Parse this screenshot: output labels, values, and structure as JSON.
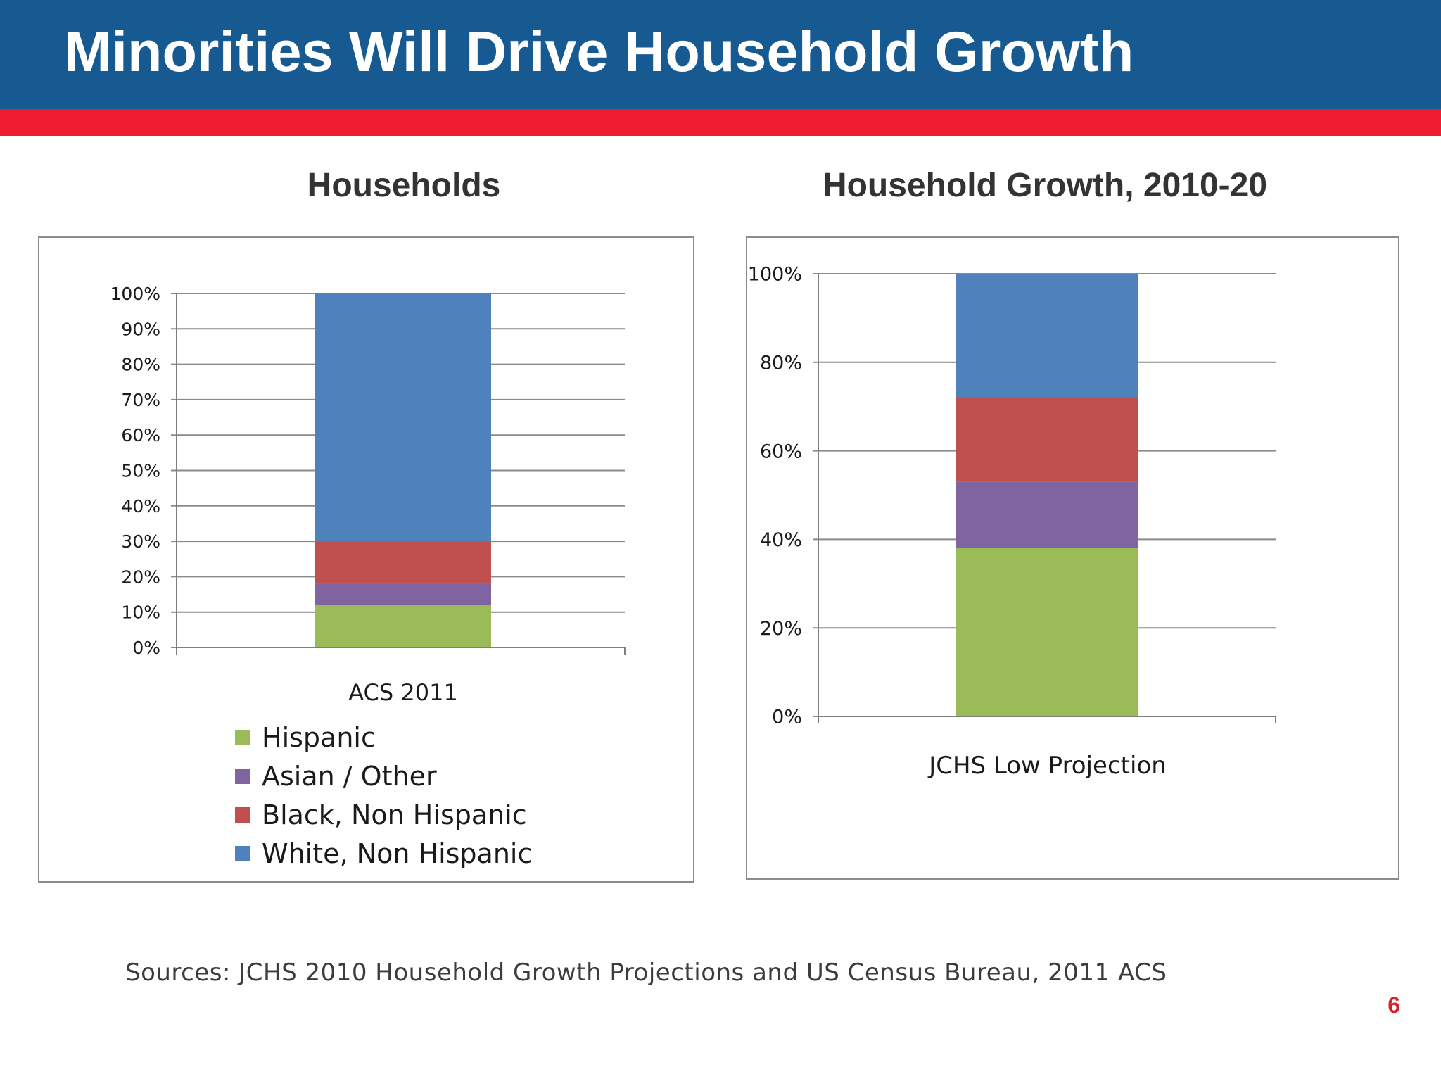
{
  "slide": {
    "title": "Minorities Will Drive Household Growth",
    "header_color": "#175a92",
    "band_color": "#ed1c2e",
    "sources": "Sources: JCHS 2010 Household Growth Projections and US Census Bureau, 2011 ACS",
    "page_number": "6"
  },
  "legend": [
    {
      "name": "Hispanic",
      "color": "#9bbb59"
    },
    {
      "name": "Asian / Other",
      "color": "#8064a2"
    },
    {
      "name": "Black, Non Hispanic",
      "color": "#c0504d"
    },
    {
      "name": "White, Non Hispanic",
      "color": "#4f81bd"
    }
  ],
  "chart_data": [
    {
      "type": "bar",
      "stacked": true,
      "title": "Households",
      "categories": [
        "ACS 2011"
      ],
      "ylim": [
        0,
        100
      ],
      "yticks": [
        "0%",
        "10%",
        "20%",
        "30%",
        "40%",
        "50%",
        "60%",
        "70%",
        "80%",
        "90%",
        "100%"
      ],
      "grid": true,
      "legend_position": "bottom",
      "series": [
        {
          "name": "Hispanic",
          "values": [
            12
          ],
          "color": "#9bbb59"
        },
        {
          "name": "Asian / Other",
          "values": [
            6
          ],
          "color": "#8064a2"
        },
        {
          "name": "Black, Non Hispanic",
          "values": [
            12
          ],
          "color": "#c0504d"
        },
        {
          "name": "White, Non Hispanic",
          "values": [
            70
          ],
          "color": "#4f81bd"
        }
      ]
    },
    {
      "type": "bar",
      "stacked": true,
      "title": "Household Growth, 2010-20",
      "categories": [
        "JCHS Low Projection"
      ],
      "ylim": [
        0,
        100
      ],
      "yticks": [
        "0%",
        "20%",
        "40%",
        "60%",
        "80%",
        "100%"
      ],
      "grid": true,
      "series": [
        {
          "name": "Hispanic",
          "values": [
            38
          ],
          "color": "#9bbb59"
        },
        {
          "name": "Asian / Other",
          "values": [
            15
          ],
          "color": "#8064a2"
        },
        {
          "name": "Black, Non Hispanic",
          "values": [
            19
          ],
          "color": "#c0504d"
        },
        {
          "name": "White, Non Hispanic",
          "values": [
            28
          ],
          "color": "#4f81bd"
        }
      ]
    }
  ]
}
